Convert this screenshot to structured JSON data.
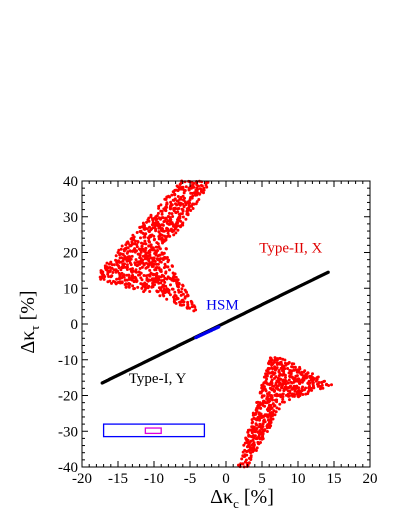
{
  "chart_data": {
    "type": "scatter",
    "title": "",
    "xlabel": "Δκ",
    "xlabel_sub": "c",
    "xlabel_unit": " [%]",
    "ylabel": "Δκ",
    "ylabel_sub": "τ",
    "ylabel_unit": " [%]",
    "xlim": [
      -20,
      20
    ],
    "ylim": [
      -40,
      40
    ],
    "xticks": [
      -20,
      -15,
      -10,
      -5,
      0,
      5,
      10,
      15,
      20
    ],
    "yticks": [
      -40,
      -30,
      -20,
      -10,
      0,
      10,
      20,
      30,
      40
    ],
    "annotations": [
      {
        "text": "Type-II, X",
        "color": "#e00000",
        "x": 9,
        "y": 20
      },
      {
        "text": "HSM",
        "color": "#0000ee",
        "x": -0.5,
        "y": 4
      },
      {
        "text": "Type-I, Y",
        "color": "#000000",
        "x": -9.5,
        "y": -16.5
      }
    ],
    "series": [
      {
        "kind": "region",
        "color": "#ff0000",
        "polygon": [
          [
            -17.5,
            15
          ],
          [
            -6.2,
            40
          ],
          [
            -2,
            40
          ],
          [
            -8.5,
            20
          ],
          [
            -3.8,
            3
          ],
          [
            -9.5,
            8
          ],
          [
            -17.5,
            12
          ]
        ],
        "points_estimated": 900
      },
      {
        "kind": "region",
        "color": "#ff0000",
        "polygon": [
          [
            1.5,
            -40
          ],
          [
            6.2,
            -9
          ],
          [
            8.5,
            -10
          ],
          [
            14.8,
            -17
          ],
          [
            8,
            -22
          ],
          [
            3,
            -40
          ]
        ],
        "points_estimated": 620
      },
      {
        "kind": "line",
        "color": "#000000",
        "x": [
          -17.2,
          14.2
        ],
        "y": [
          -16.5,
          14.5
        ]
      },
      {
        "kind": "line",
        "color": "#0000ee",
        "x": [
          -4.2,
          -1.0
        ],
        "y": [
          -3.8,
          -0.8
        ]
      }
    ],
    "boxes": [
      {
        "color": "#0000ff",
        "x": [
          -17,
          -3
        ],
        "y": [
          -31.5,
          -28
        ]
      },
      {
        "color": "#dd00dd",
        "x": [
          -11.2,
          -9
        ],
        "y": [
          -30.6,
          -29.1
        ]
      }
    ]
  }
}
